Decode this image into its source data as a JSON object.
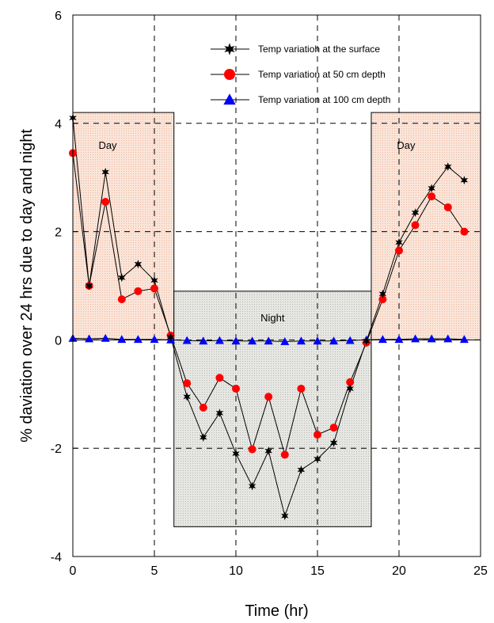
{
  "chart_data": {
    "type": "line",
    "xlabel": "Time (hr)",
    "ylabel": "% daviation over 24 hrs due to day and night",
    "xlim": [
      0,
      25
    ],
    "ylim": [
      -4,
      6
    ],
    "xticks": [
      0,
      5,
      10,
      15,
      20,
      25
    ],
    "yticks": [
      -4,
      -2,
      0,
      2,
      4,
      6
    ],
    "grid": "dashed",
    "legend_position": "top-right",
    "regions": [
      {
        "label": "Day",
        "x": [
          0,
          6.2
        ],
        "y": [
          0,
          4.2
        ],
        "color": "#fbe4d8"
      },
      {
        "label": "Night",
        "x": [
          6.2,
          18.3
        ],
        "y": [
          -3.45,
          0.9
        ],
        "color": "#e6e6e3"
      },
      {
        "label": "Day",
        "x": [
          18.3,
          25
        ],
        "y": [
          0,
          4.2
        ],
        "color": "#fbe4d8"
      }
    ],
    "x": [
      0,
      1,
      2,
      3,
      4,
      5,
      6,
      7,
      8,
      9,
      10,
      11,
      12,
      13,
      14,
      15,
      16,
      17,
      18,
      19,
      20,
      21,
      22,
      23,
      24
    ],
    "series": [
      {
        "name": "Temp variatioh at the surface",
        "color": "#000000",
        "marker": "star",
        "values": [
          4.1,
          1.0,
          3.1,
          1.15,
          1.4,
          1.1,
          0.05,
          -1.05,
          -1.8,
          -1.35,
          -2.1,
          -2.7,
          -2.05,
          -3.25,
          -2.4,
          -2.2,
          -1.9,
          -0.9,
          -0.02,
          0.85,
          1.8,
          2.35,
          2.8,
          3.2,
          2.95
        ]
      },
      {
        "name": "Temp variation at 50 cm depth",
        "color": "#ff0000",
        "marker": "circle",
        "values": [
          3.45,
          1.0,
          2.55,
          0.75,
          0.9,
          0.95,
          0.08,
          -0.8,
          -1.25,
          -0.7,
          -0.9,
          -2.02,
          -1.05,
          -2.12,
          -0.9,
          -1.75,
          -1.62,
          -0.78,
          -0.05,
          0.75,
          1.65,
          2.12,
          2.65,
          2.45,
          2.0
        ]
      },
      {
        "name": "Temp variation at 100 cm depth",
        "color": "#0000ff",
        "marker": "triangle",
        "values": [
          0.03,
          0.02,
          0.03,
          0.01,
          0.01,
          0.01,
          0.0,
          -0.01,
          -0.02,
          -0.01,
          -0.02,
          -0.02,
          -0.02,
          -0.03,
          -0.02,
          -0.02,
          -0.02,
          -0.01,
          0.0,
          0.01,
          0.01,
          0.02,
          0.02,
          0.02,
          0.01
        ]
      }
    ]
  }
}
